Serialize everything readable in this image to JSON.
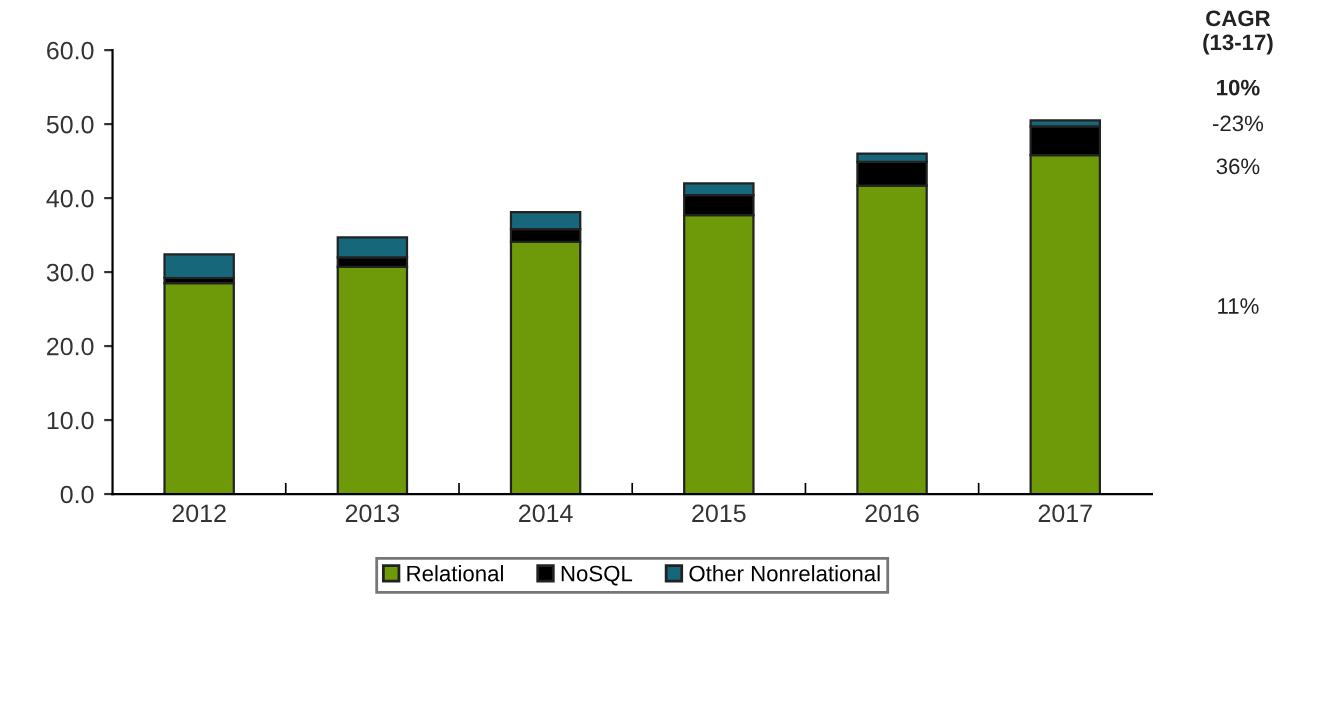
{
  "chart_data": {
    "type": "bar",
    "stacked": true,
    "categories": [
      "2012",
      "2013",
      "2014",
      "2015",
      "2016",
      "2017"
    ],
    "series": [
      {
        "name": "Relational",
        "color": "#6e9a0a",
        "values": [
          28.5,
          30.7,
          34.1,
          37.7,
          41.7,
          45.8
        ]
      },
      {
        "name": "NoSQL",
        "color": "#000000",
        "values": [
          0.7,
          1.3,
          1.7,
          2.7,
          3.2,
          3.9
        ]
      },
      {
        "name": "Other Nonrelational",
        "color": "#16677a",
        "values": [
          3.2,
          2.7,
          2.3,
          1.6,
          1.1,
          0.8
        ]
      }
    ],
    "ylim": [
      0,
      60
    ],
    "yticks": [
      {
        "value": 0,
        "label": "0.0"
      },
      {
        "value": 10,
        "label": "10.0"
      },
      {
        "value": 20,
        "label": "20.0"
      },
      {
        "value": 30,
        "label": "30.0"
      },
      {
        "value": 40,
        "label": "40.0"
      },
      {
        "value": 50,
        "label": "50.0"
      },
      {
        "value": 60,
        "label": "60.0"
      }
    ],
    "grid": false,
    "legend": "bottom",
    "annotations": [
      "CAGR (13-17)",
      "10%",
      "-23%",
      "36%",
      "11%"
    ]
  }
}
